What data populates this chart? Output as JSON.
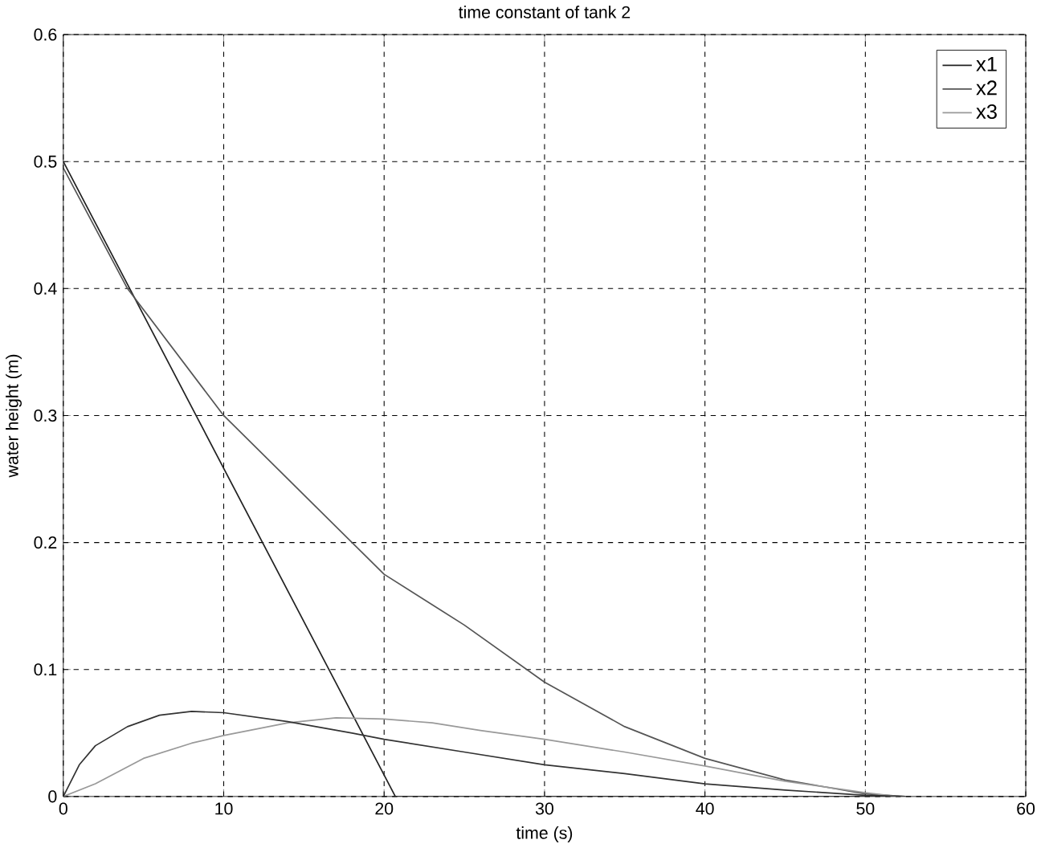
{
  "chart_data": {
    "type": "line",
    "title": "time constant of tank 2",
    "xlabel": "time (s)",
    "ylabel": "water height (m)",
    "xlim": [
      0,
      60
    ],
    "xticks": [
      0,
      10,
      20,
      30,
      40,
      50,
      60
    ],
    "ylim": [
      0,
      0.6
    ],
    "yticks": [
      0,
      0.1,
      0.2,
      0.3,
      0.4,
      0.5,
      0.6
    ],
    "grid": true,
    "legend": "top right",
    "series": [
      {
        "name": "x1",
        "color": "#222222",
        "x": [
          0,
          20.7,
          52.5
        ],
        "values": [
          0.5,
          0,
          0
        ]
      },
      {
        "name": "x2",
        "color": "#555555",
        "x": [
          0,
          4,
          10,
          14,
          18,
          20,
          25,
          30,
          35,
          40,
          45,
          50,
          52.5
        ],
        "values": [
          0.495,
          0.4,
          0.3,
          0.25,
          0.2,
          0.175,
          0.135,
          0.09,
          0.055,
          0.03,
          0.013,
          0.002,
          0
        ]
      },
      {
        "name": "x3",
        "color": "#999999",
        "x": [
          0,
          2,
          5,
          8,
          10,
          14,
          17,
          20,
          23,
          26,
          30,
          35,
          40,
          45,
          50,
          52
        ],
        "values": [
          0,
          0.01,
          0.03,
          0.042,
          0.048,
          0.058,
          0.062,
          0.061,
          0.058,
          0.052,
          0.045,
          0.035,
          0.024,
          0.012,
          0.003,
          0
        ]
      },
      {
        "color": "#333333",
        "x": [
          0,
          1,
          2,
          4,
          6,
          8,
          10,
          14,
          18,
          20,
          25,
          30,
          35,
          40,
          45,
          50,
          52.5
        ],
        "values": [
          0,
          0.025,
          0.04,
          0.055,
          0.064,
          0.067,
          0.066,
          0.059,
          0.05,
          0.045,
          0.035,
          0.025,
          0.018,
          0.01,
          0.005,
          0.001,
          0
        ]
      }
    ]
  }
}
